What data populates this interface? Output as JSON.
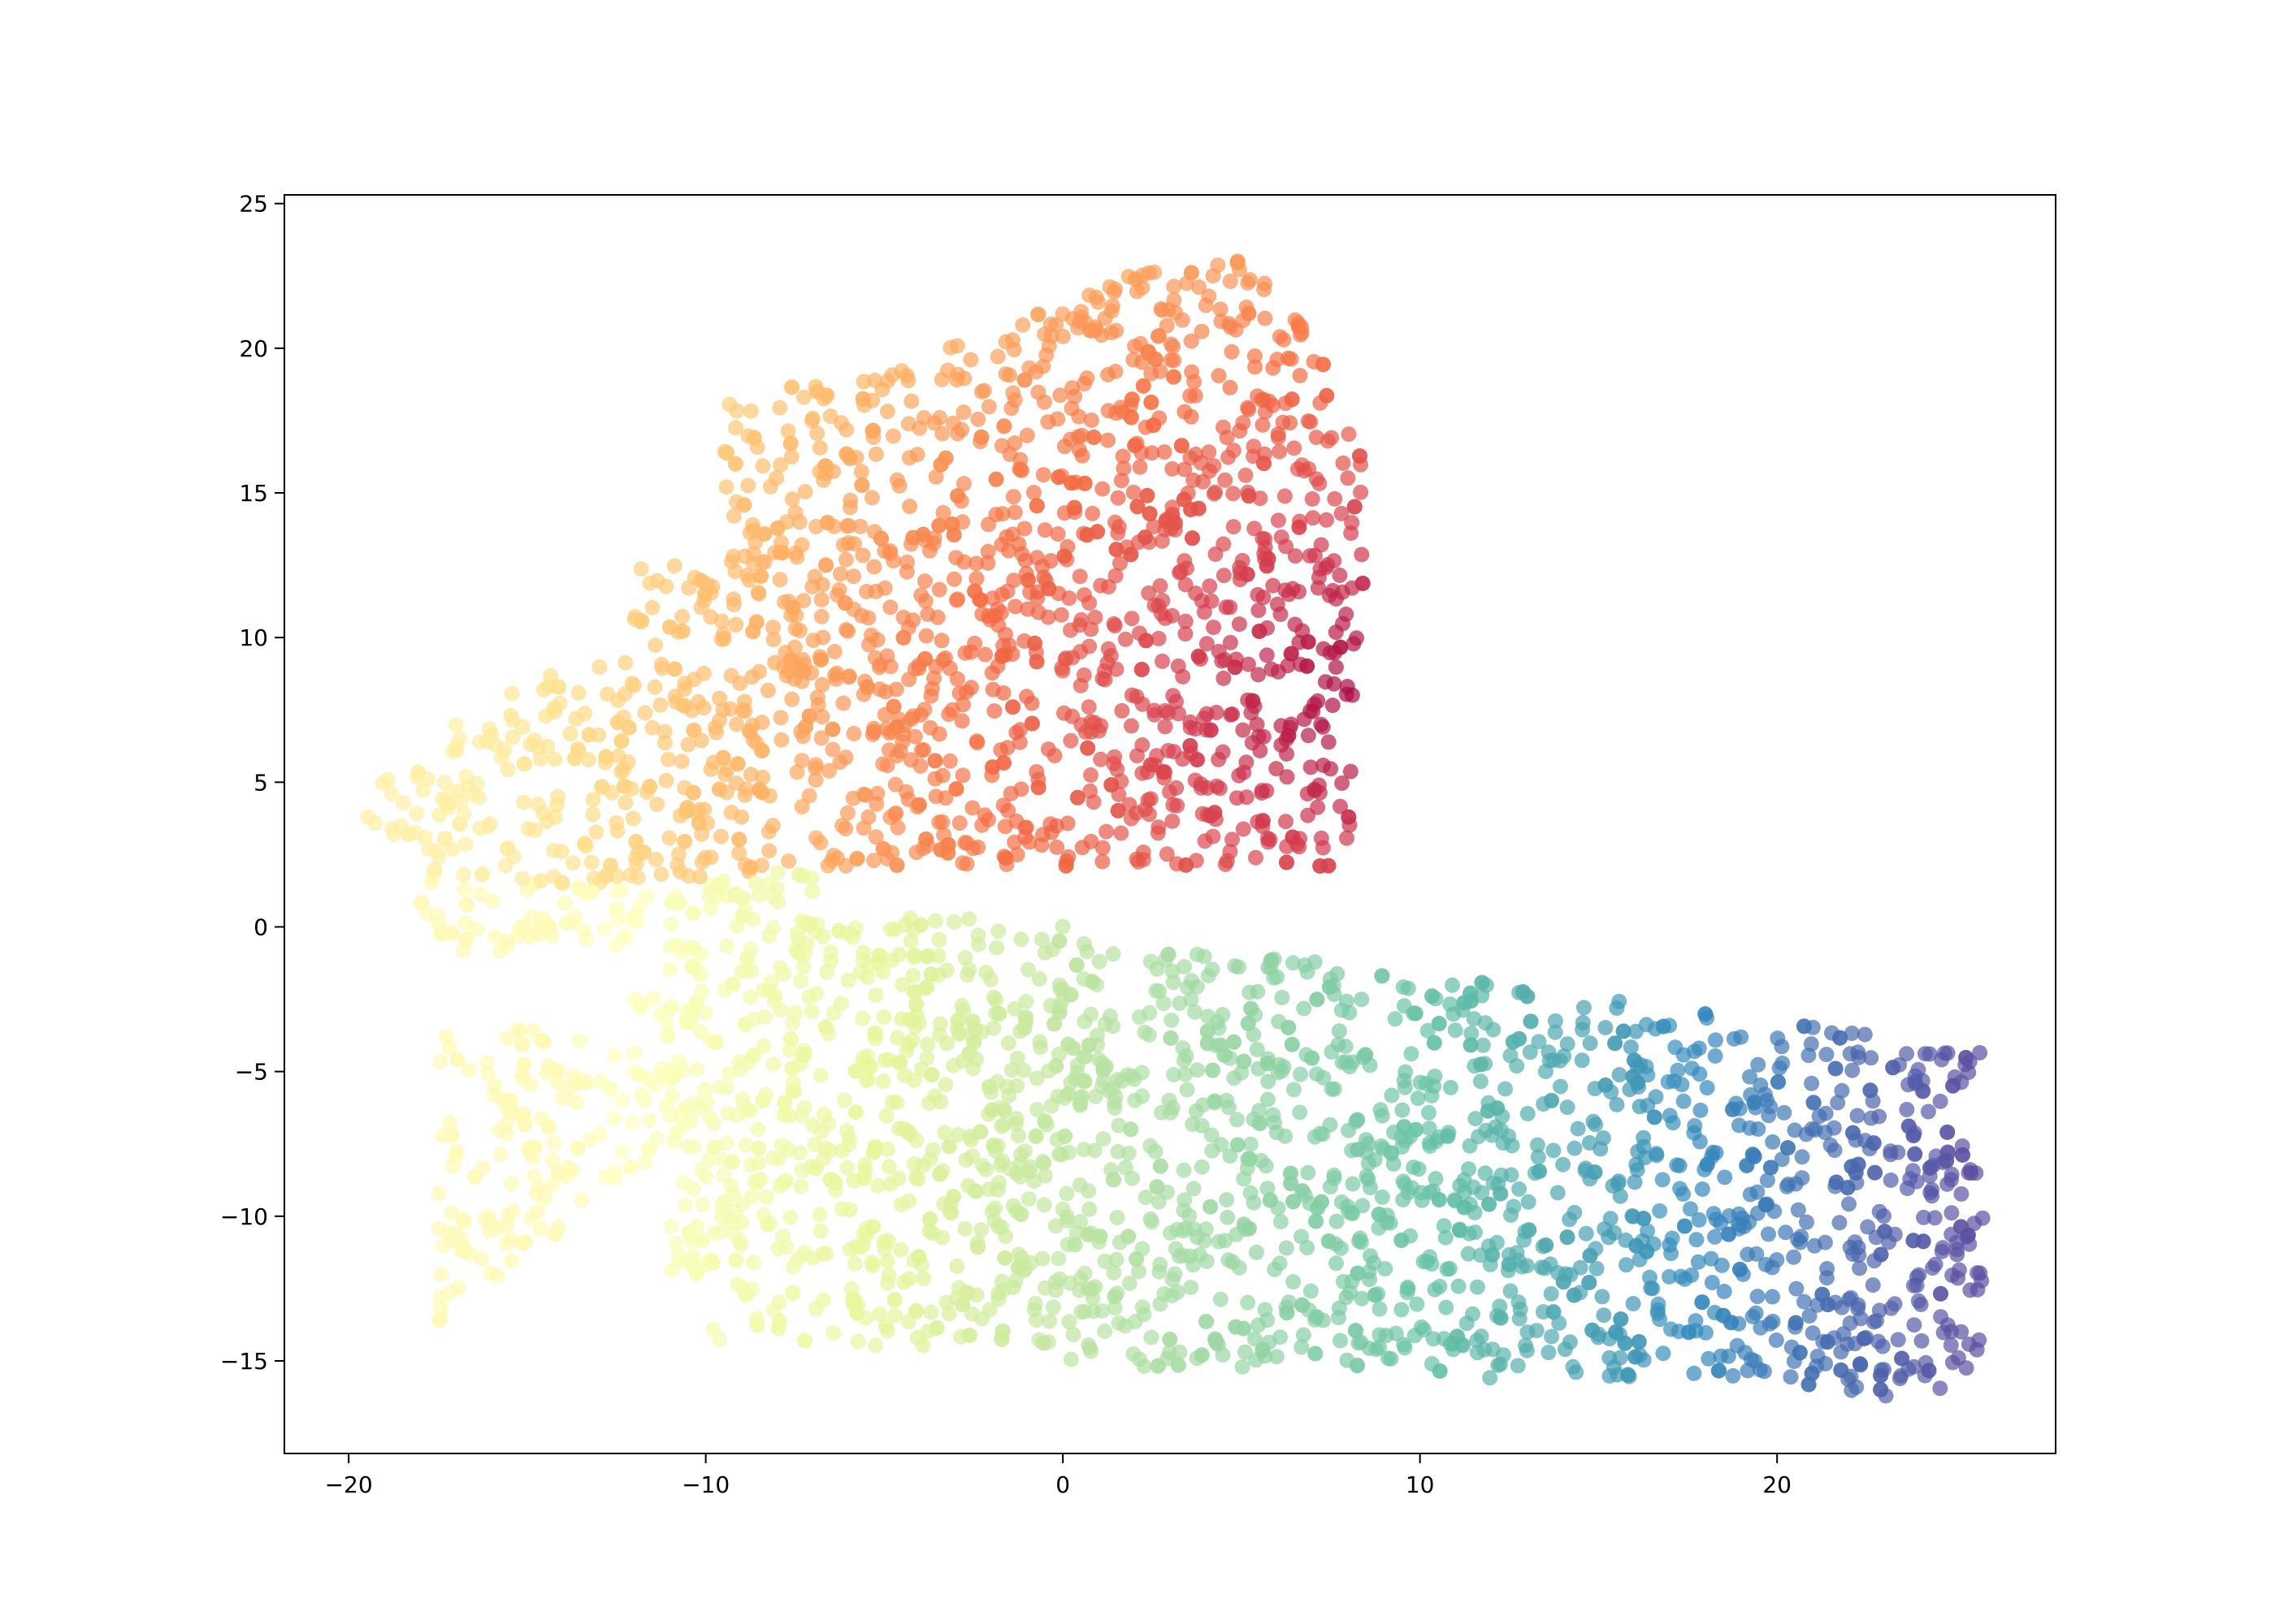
{
  "chart_data": {
    "type": "scatter",
    "title": "",
    "xlabel": "",
    "ylabel": "",
    "xlim": [
      -21.8,
      27.8
    ],
    "ylim": [
      -18.2,
      25.3
    ],
    "grid": false,
    "legend": "none",
    "x_ticks": [
      -20,
      -10,
      0,
      10,
      20
    ],
    "y_ticks": [
      -15,
      -10,
      -5,
      0,
      5,
      10,
      15,
      20,
      25
    ],
    "x_tick_labels": [
      "−20",
      "−10",
      "0",
      "10",
      "20"
    ],
    "y_tick_labels": [
      "−15",
      "−10",
      "−5",
      "0",
      "5",
      "10",
      "15",
      "20",
      "25"
    ],
    "colormap": "Spectral",
    "marker_alpha": 0.7,
    "approx_point_count": 4000,
    "clusters": [
      {
        "name": "",
        "description_region": "upper",
        "x_range": [
          -19.5,
          8.5
        ],
        "y_range": [
          2.0,
          23.2
        ],
        "color_range": [
          "#fee08b",
          "#9e0142"
        ]
      },
      {
        "name": "",
        "description_region": "lower",
        "x_range": [
          -18.0,
          25.7
        ],
        "y_range": [
          -16.3,
          0.3
        ],
        "color_range": [
          "#ffffbf",
          "#5e4fa2"
        ]
      }
    ]
  }
}
